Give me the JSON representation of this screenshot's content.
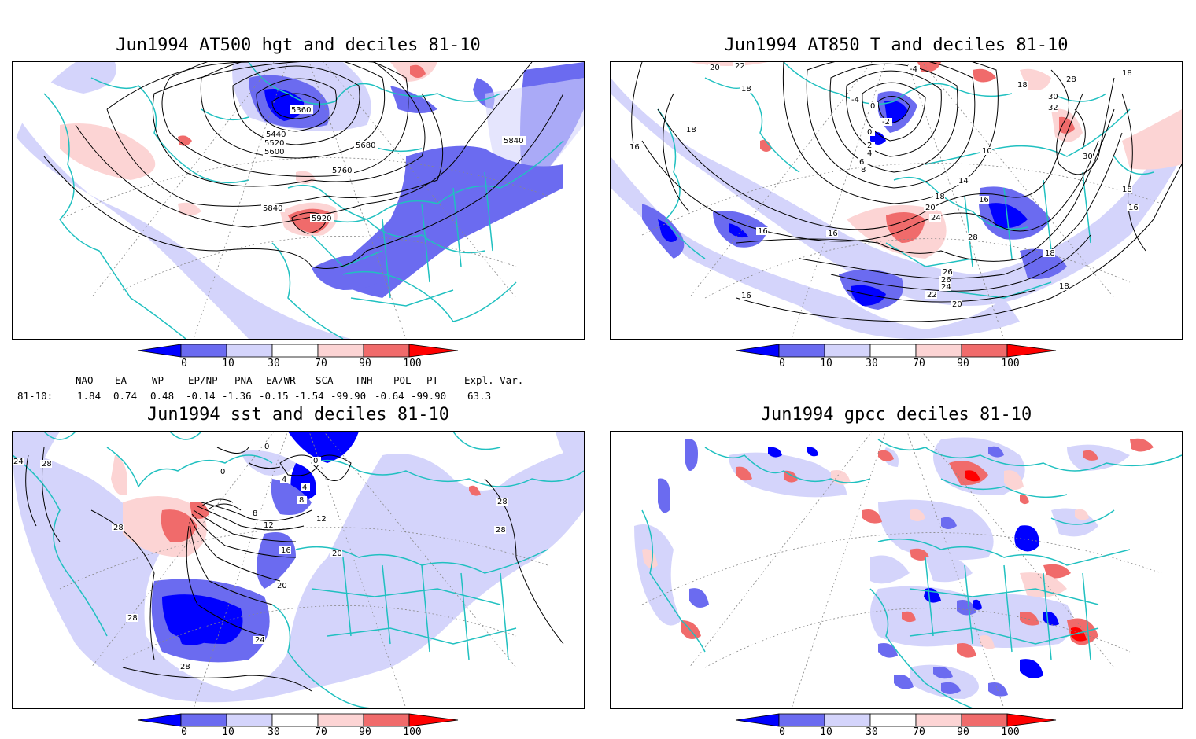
{
  "panels": [
    {
      "id": "p1",
      "title": "Jun1994 AT500 hgt and deciles 81-10",
      "contour_labels": [
        "5360",
        "5440",
        "5520",
        "5600",
        "5680",
        "5760",
        "5840",
        "5840",
        "5920"
      ]
    },
    {
      "id": "p2",
      "title": "Jun1994 AT850 T and deciles 81-10",
      "contour_labels": [
        "20",
        "22",
        "18",
        "18",
        "16",
        "16",
        "16",
        "16",
        "-4",
        "-4",
        "0",
        "-2",
        "0",
        "2",
        "4",
        "6",
        "8",
        "10",
        "14",
        "16",
        "18",
        "20",
        "24",
        "28",
        "26",
        "26",
        "24",
        "22",
        "20",
        "18",
        "18",
        "18",
        "16",
        "18",
        "28",
        "30",
        "32",
        "30",
        "18"
      ]
    },
    {
      "id": "p3",
      "title": "Jun1994 sst and deciles 81-10",
      "contour_labels": [
        "24",
        "28",
        "28",
        "28",
        "0",
        "0",
        "0",
        "4",
        "4",
        "8",
        "8",
        "12",
        "12",
        "16",
        "20",
        "20",
        "24",
        "28",
        "28",
        "28"
      ]
    },
    {
      "id": "p4",
      "title": "Jun1994 gpcc deciles 81-10",
      "contour_labels": []
    }
  ],
  "colorbar": {
    "ticks": [
      "0",
      "10",
      "30",
      "70",
      "90",
      "100"
    ],
    "colors": [
      "#0000ff",
      "#6b6bf0",
      "#d4d4fb",
      "#ffffff",
      "#fcd4d4",
      "#f06b6b",
      "#ff0000"
    ]
  },
  "indices": {
    "headers": [
      "NAO",
      "EA",
      "WP",
      "EP/NP",
      "PNA",
      "EA/WR",
      "SCA",
      "TNH",
      "POL",
      "PT",
      "Expl. Var."
    ],
    "row_label": "81-10:",
    "values": [
      "1.84",
      "0.74",
      "0.48",
      "-0.14",
      "-1.36",
      "-0.15",
      "-1.54",
      "-99.90",
      "-0.64",
      "-99.90",
      "63.3"
    ]
  }
}
